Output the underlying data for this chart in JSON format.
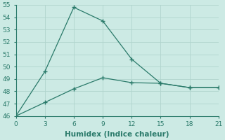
{
  "x": [
    0,
    3,
    6,
    9,
    12,
    15,
    18,
    21
  ],
  "line1_y": [
    46.0,
    49.6,
    54.8,
    53.7,
    50.6,
    48.65,
    48.3,
    48.3
  ],
  "line2_y": [
    46.0,
    47.1,
    48.2,
    49.1,
    48.7,
    48.65,
    48.3,
    48.3
  ],
  "line_color": "#2a7a6a",
  "marker": "+",
  "bg_color": "#cceae4",
  "grid_color": "#b0d4cd",
  "axis_color": "#2a7a6a",
  "xlabel": "Humidex (Indice chaleur)",
  "ylim": [
    46,
    55
  ],
  "xlim": [
    0,
    21
  ],
  "yticks": [
    46,
    47,
    48,
    49,
    50,
    51,
    52,
    53,
    54,
    55
  ],
  "xticks": [
    0,
    3,
    6,
    9,
    12,
    15,
    18,
    21
  ],
  "tick_labelsize": 6.5,
  "xlabel_fontsize": 7.5
}
